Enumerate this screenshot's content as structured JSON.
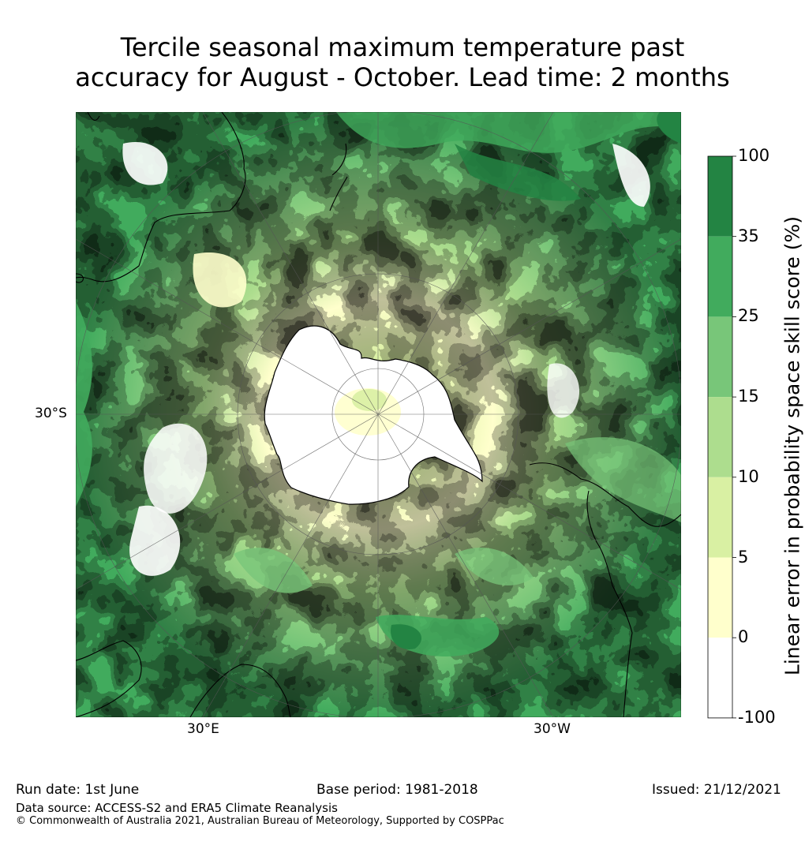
{
  "title": {
    "line1": "Tercile seasonal maximum temperature past",
    "line2": "accuracy for August - October. Lead time: 2 months"
  },
  "map": {
    "projection": "south polar stereographic",
    "lat_label": "30°S",
    "lon_labels": [
      "30°E",
      "30°W"
    ]
  },
  "colorbar": {
    "title": "Linear error in probability space skill score (%)",
    "ticks": [
      "100",
      "35",
      "25",
      "15",
      "10",
      "5",
      "0",
      "-100"
    ],
    "colors": [
      "#238443",
      "#41ab5d",
      "#78c679",
      "#addd8e",
      "#d9f0a3",
      "#ffffcc",
      "#ffffff"
    ]
  },
  "footer": {
    "run_date": "Run date: 1st June",
    "base_period": "Base period: 1981-2018",
    "issued": "Issued: 21/12/2021",
    "data_source": "Data source: ACCESS-S2 and ERA5 Climate Reanalysis",
    "copyright": "© Commonwealth of Australia 2021, Australian Bureau of Meteorology, Supported by COSPPac"
  }
}
